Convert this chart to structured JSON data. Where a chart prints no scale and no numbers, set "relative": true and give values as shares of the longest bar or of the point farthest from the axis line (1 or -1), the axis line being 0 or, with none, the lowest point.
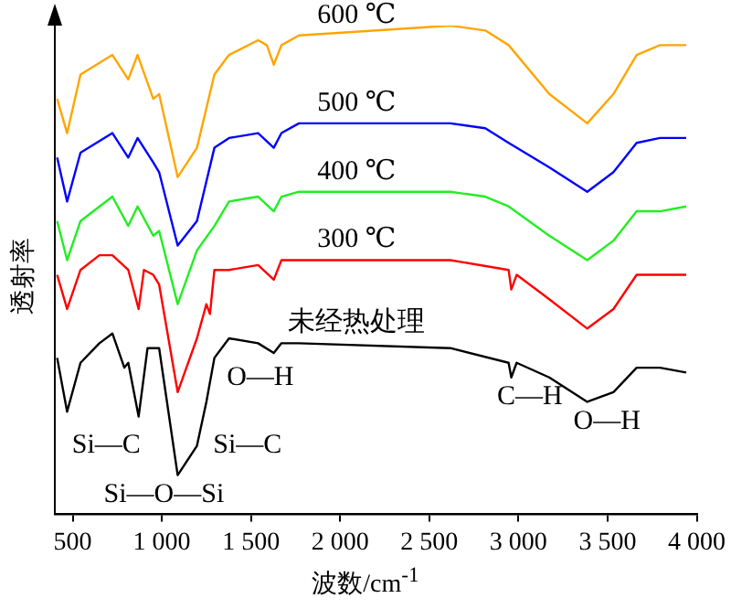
{
  "chart_data": {
    "type": "line",
    "xlabel": "波数/cm$^{-1}$",
    "ylabel": "透射率",
    "relative": true,
    "marker": "none",
    "xlim": [
      400,
      4000
    ],
    "xticks": [
      500,
      {
        "value": 1000,
        "label": "1 000"
      },
      {
        "value": 1500,
        "label": "1 500"
      },
      {
        "value": 2000,
        "label": "2 000"
      },
      {
        "value": 2500,
        "label": "2 500"
      },
      {
        "value": 3000,
        "label": "3 000"
      },
      {
        "value": 3500,
        "label": "3 500"
      },
      {
        "value": 4000,
        "label": "4 000"
      }
    ],
    "series": [
      {
        "name": "600 ℃",
        "color": "#ffa500",
        "x": [
          413,
          469,
          544,
          723,
          812,
          864,
          952,
          985,
          1089,
          1197,
          1295,
          1377,
          1540,
          1589,
          1628,
          1671,
          1769,
          2618,
          2814,
          2945,
          3173,
          3386,
          3533,
          3663,
          3794,
          3941
        ],
        "values": [
          0.85,
          0.78,
          0.9,
          0.94,
          0.89,
          0.94,
          0.85,
          0.86,
          0.69,
          0.75,
          0.9,
          0.94,
          0.97,
          0.96,
          0.92,
          0.96,
          0.98,
          1.0,
          0.99,
          0.96,
          0.86,
          0.8,
          0.86,
          0.94,
          0.96,
          0.96
        ]
      },
      {
        "name": "500 ℃",
        "color": "#0000ff",
        "x": [
          413,
          469,
          544,
          723,
          812,
          864,
          952,
          985,
          1089,
          1197,
          1295,
          1377,
          1540,
          1628,
          1671,
          1769,
          2618,
          2814,
          2945,
          3173,
          3386,
          3533,
          3663,
          3794,
          3941
        ],
        "values": [
          0.73,
          0.64,
          0.74,
          0.78,
          0.73,
          0.77,
          0.72,
          0.7,
          0.55,
          0.6,
          0.75,
          0.77,
          0.78,
          0.75,
          0.78,
          0.8,
          0.8,
          0.79,
          0.76,
          0.71,
          0.66,
          0.7,
          0.76,
          0.77,
          0.77
        ]
      },
      {
        "name": "400 ℃",
        "color": "#22ee22",
        "x": [
          413,
          469,
          544,
          723,
          812,
          864,
          952,
          985,
          1089,
          1197,
          1295,
          1377,
          1540,
          1628,
          1671,
          1769,
          2618,
          2814,
          2945,
          3173,
          3386,
          3533,
          3663,
          3794,
          3941
        ],
        "values": [
          0.6,
          0.52,
          0.6,
          0.65,
          0.59,
          0.63,
          0.57,
          0.58,
          0.43,
          0.54,
          0.59,
          0.64,
          0.65,
          0.62,
          0.65,
          0.66,
          0.66,
          0.65,
          0.63,
          0.57,
          0.52,
          0.56,
          0.62,
          0.62,
          0.63
        ]
      },
      {
        "name": "300 ℃",
        "color": "#ff0000",
        "x": [
          413,
          469,
          544,
          650,
          723,
          812,
          870,
          900,
          952,
          985,
          1089,
          1197,
          1250,
          1270,
          1295,
          1377,
          1540,
          1628,
          1671,
          1769,
          2618,
          2945,
          2960,
          2990,
          3173,
          3386,
          3533,
          3663,
          3794,
          3941
        ],
        "values": [
          0.49,
          0.42,
          0.5,
          0.53,
          0.53,
          0.5,
          0.42,
          0.5,
          0.49,
          0.47,
          0.25,
          0.36,
          0.43,
          0.41,
          0.5,
          0.5,
          0.51,
          0.48,
          0.52,
          0.52,
          0.52,
          0.5,
          0.46,
          0.49,
          0.44,
          0.38,
          0.42,
          0.49,
          0.49,
          0.49
        ]
      },
      {
        "name": "未经热处理",
        "color": "#000000",
        "x": [
          413,
          469,
          544,
          650,
          723,
          790,
          812,
          870,
          920,
          985,
          1089,
          1197,
          1250,
          1295,
          1377,
          1540,
          1628,
          1671,
          1769,
          2618,
          2945,
          2960,
          2990,
          3173,
          3386,
          3533,
          3663,
          3794,
          3941
        ],
        "values": [
          0.32,
          0.21,
          0.31,
          0.35,
          0.37,
          0.3,
          0.31,
          0.2,
          0.34,
          0.34,
          0.08,
          0.14,
          0.23,
          0.32,
          0.36,
          0.35,
          0.33,
          0.35,
          0.35,
          0.34,
          0.31,
          0.28,
          0.31,
          0.28,
          0.23,
          0.25,
          0.3,
          0.3,
          0.29
        ]
      }
    ],
    "annotations": [
      "Si—C",
      "Si—O—Si",
      "Si—C",
      "O—H",
      "C—H",
      "O—H"
    ]
  }
}
